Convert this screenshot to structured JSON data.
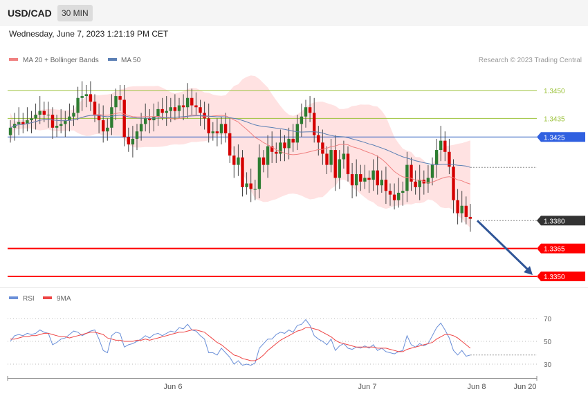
{
  "header": {
    "symbol": "USD/CAD",
    "timeframe": "30 MIN"
  },
  "datetime": "Wednesday, June 7, 2023 1:21:19 PM CET",
  "legend": {
    "ma20": "MA 20 + Bollinger Bands",
    "ma50": "MA 50",
    "credit": "Research © 2023 Trading Central"
  },
  "rsi_legend": {
    "rsi": "RSI",
    "ma9": "9MA"
  },
  "colors": {
    "up": "#2e7d32",
    "down": "#d50000",
    "bollinger": "#ffe2e2",
    "ma20": "#f08080",
    "ma50": "#5b7fb4",
    "support": "#ff0000",
    "resistance": "#9bc23a",
    "pivot": "#3060c0",
    "last": "#333333",
    "arrow": "#2f5597",
    "rsi": "#6a8fd8",
    "rsi_ma": "#ee4444"
  },
  "chart_data": [
    {
      "type": "candlestick",
      "title": "USD/CAD",
      "timeframe": "30 MIN",
      "ylim": [
        1.3342,
        1.3462
      ],
      "x_ticks": [
        "Jun 6",
        "Jun 7",
        "Jun 8",
        "Jun 20"
      ],
      "series": [
        {
          "name": "MA 20 + Bollinger Bands",
          "role": "ma20_bollinger"
        },
        {
          "name": "MA 50",
          "role": "ma50"
        }
      ],
      "closes": [
        1.343,
        1.3432,
        1.3433,
        1.3432,
        1.3434,
        1.3435,
        1.3437,
        1.3439,
        1.3437,
        1.3437,
        1.343,
        1.3431,
        1.3432,
        1.3434,
        1.3436,
        1.3438,
        1.3446,
        1.3447,
        1.3448,
        1.3444,
        1.3437,
        1.3434,
        1.3428,
        1.343,
        1.3441,
        1.3447,
        1.3445,
        1.3425,
        1.3421,
        1.3424,
        1.3428,
        1.3432,
        1.3435,
        1.3434,
        1.3436,
        1.344,
        1.3438,
        1.3439,
        1.3441,
        1.3439,
        1.3442,
        1.3441,
        1.3446,
        1.3442,
        1.3441,
        1.3438,
        1.3435,
        1.3427,
        1.3428,
        1.3427,
        1.3432,
        1.3427,
        1.3415,
        1.341,
        1.3414,
        1.3398,
        1.34,
        1.3397,
        1.3397,
        1.3414,
        1.341,
        1.342,
        1.3417,
        1.3416,
        1.3422,
        1.3419,
        1.3424,
        1.3422,
        1.3432,
        1.3436,
        1.3441,
        1.3438,
        1.3426,
        1.3422,
        1.3416,
        1.341,
        1.3418,
        1.3403,
        1.3413,
        1.3416,
        1.3405,
        1.3399,
        1.3405,
        1.3401,
        1.3403,
        1.3402,
        1.3407,
        1.3399,
        1.3402,
        1.3396,
        1.3394,
        1.3391,
        1.3395,
        1.3396,
        1.341,
        1.3401,
        1.3398,
        1.3402,
        1.34,
        1.3403,
        1.341,
        1.3418,
        1.3423,
        1.3417,
        1.3409,
        1.3391,
        1.3384,
        1.3388,
        1.3382,
        1.3381
      ],
      "current_price": 1.3381,
      "levels": [
        {
          "label": "1.3450",
          "value": 1.345,
          "kind": "resistance"
        },
        {
          "label": "1.3435",
          "value": 1.3435,
          "kind": "resistance"
        },
        {
          "label": "1.3425",
          "value": 1.3425,
          "kind": "pivot"
        },
        {
          "label": "1.3380",
          "value": 1.338,
          "kind": "last"
        },
        {
          "label": "1.3365",
          "value": 1.3365,
          "kind": "support"
        },
        {
          "label": "1.3350",
          "value": 1.335,
          "kind": "support"
        }
      ],
      "arrow": {
        "from": 1.338,
        "to": 1.335,
        "direction": "down"
      }
    },
    {
      "type": "line",
      "title": "RSI",
      "ylim": [
        24,
        76
      ],
      "y_ticks": [
        "70",
        "50",
        "30"
      ],
      "series": [
        {
          "name": "RSI",
          "values": [
            50,
            55,
            56,
            55,
            57,
            56,
            57,
            60,
            58,
            57,
            47,
            49,
            52,
            53,
            56,
            59,
            58,
            55,
            57,
            59,
            60,
            52,
            42,
            40,
            55,
            58,
            57,
            45,
            47,
            48,
            50,
            52,
            55,
            53,
            56,
            57,
            55,
            57,
            59,
            58,
            62,
            61,
            65,
            60,
            59,
            55,
            52,
            40,
            40,
            38,
            44,
            40,
            36,
            30,
            33,
            29,
            30,
            29,
            31,
            44,
            48,
            52,
            52,
            56,
            58,
            57,
            60,
            58,
            64,
            65,
            69,
            64,
            55,
            52,
            50,
            47,
            52,
            42,
            46,
            48,
            44,
            43,
            45,
            44,
            46,
            44,
            47,
            42,
            44,
            41,
            40,
            39,
            41,
            42,
            55,
            47,
            45,
            48,
            46,
            48,
            55,
            62,
            66,
            60,
            53,
            42,
            38,
            42,
            37,
            38
          ]
        },
        {
          "name": "9MA",
          "values": [
            52,
            52,
            53,
            54,
            54,
            55,
            55,
            56,
            57,
            57,
            56,
            55,
            54,
            54,
            53,
            54,
            55,
            56,
            57,
            58,
            58,
            57,
            56,
            53,
            52,
            51,
            51,
            50,
            50,
            50,
            51,
            51,
            52,
            51,
            52,
            53,
            54,
            55,
            56,
            57,
            58,
            58,
            59,
            60,
            60,
            59,
            58,
            55,
            52,
            49,
            47,
            44,
            41,
            38,
            37,
            35,
            34,
            33,
            33,
            35,
            38,
            42,
            45,
            48,
            51,
            53,
            55,
            57,
            59,
            60,
            62,
            62,
            61,
            60,
            58,
            56,
            54,
            51,
            49,
            48,
            47,
            46,
            45,
            45,
            45,
            45,
            45,
            44,
            44,
            44,
            43,
            42,
            41,
            41,
            43,
            44,
            45,
            46,
            47,
            48,
            49,
            52,
            54,
            56,
            56,
            55,
            53,
            50,
            47,
            44
          ]
        }
      ]
    }
  ]
}
